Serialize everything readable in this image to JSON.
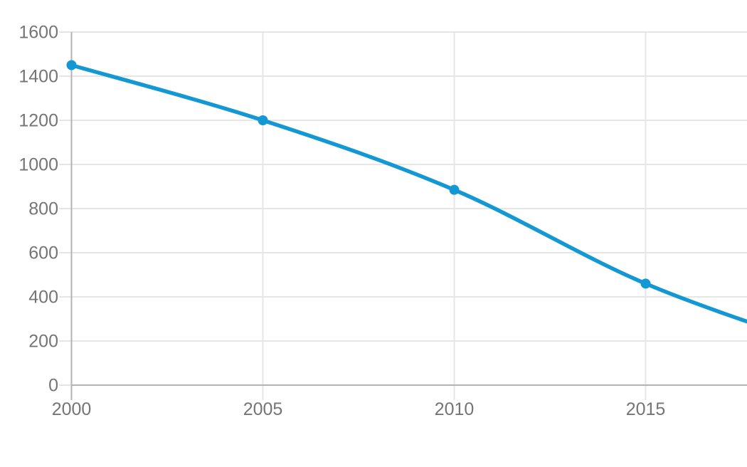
{
  "chart_data": {
    "type": "line",
    "title": "",
    "xlabel": "",
    "ylabel": "",
    "grid": true,
    "legend": "none",
    "ylim": [
      0,
      1600
    ],
    "y_tick_step": 200,
    "y_tick_labels": [
      "1600",
      "1400",
      "1200",
      "1000",
      "800",
      "600",
      "400",
      "200",
      "0"
    ],
    "x_tick_values": [
      2000,
      2005,
      2010,
      2015
    ],
    "x_tick_labels": [
      "2000",
      "2005",
      "2010",
      "2015"
    ],
    "xlim_visible": [
      2000,
      2017.7
    ],
    "series": [
      {
        "name": "series-1",
        "points": [
          {
            "x": 2000,
            "y": 1450
          },
          {
            "x": 2005,
            "y": 1200
          },
          {
            "x": 2010,
            "y": 885
          },
          {
            "x": 2015,
            "y": 460
          }
        ],
        "line_clipped_at_right_edge": true,
        "value_at_right_edge": 300,
        "offscreen_next_point": {
          "x": 2020,
          "y": 150
        }
      }
    ],
    "colors": {
      "line": "#1498d4",
      "marker": "#1498d4",
      "gridline": "#e6e6e6",
      "axis": "#b3b3b3",
      "tick_label": "#757575",
      "background": "#ffffff"
    }
  }
}
